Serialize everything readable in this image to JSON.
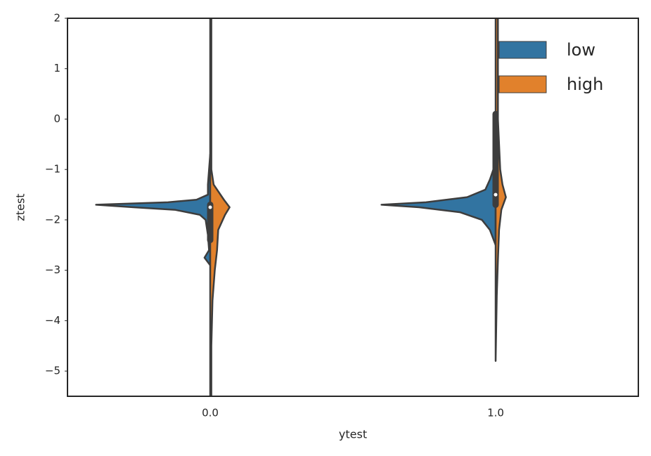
{
  "chart_data": {
    "type": "violin",
    "x_label": "ytest",
    "y_label": "ztest",
    "categories": [
      "0.0",
      "1.0"
    ],
    "ylim": [
      -5.5,
      2
    ],
    "yticks": [
      {
        "value": 2,
        "label": "2"
      },
      {
        "value": 1,
        "label": "1"
      },
      {
        "value": 0,
        "label": "0"
      },
      {
        "value": -1,
        "label": "−1"
      },
      {
        "value": -2,
        "label": "−2"
      },
      {
        "value": -3,
        "label": "−3"
      },
      {
        "value": -4,
        "label": "−4"
      },
      {
        "value": -5,
        "label": "−5"
      }
    ],
    "legend": "upper right",
    "series": [
      {
        "name": "low",
        "color": "#3274a1",
        "side": "left",
        "violins": [
          {
            "z": [
              -0.7,
              -1.0,
              -1.3,
              -1.5,
              -1.6,
              -1.65,
              -1.7,
              -1.75,
              -1.8,
              -1.9,
              -2.0,
              -2.3,
              -2.6,
              -2.75,
              -2.9
            ],
            "density": [
              0,
              0.01,
              0.02,
              0.02,
              0.12,
              0.37,
              1,
              0.67,
              0.31,
              0.09,
              0.04,
              0.02,
              0.01,
              0.05,
              0
            ]
          },
          {
            "z": [
              0.1,
              0,
              -0.5,
              -1,
              -1.2,
              -1.4,
              -1.55,
              -1.65,
              -1.7,
              -1.75,
              -1.85,
              -2,
              -2.2,
              -2.5
            ],
            "density": [
              0,
              0.02,
              0.02,
              0.02,
              0.05,
              0.09,
              0.25,
              0.61,
              1,
              0.67,
              0.31,
              0.12,
              0.05,
              0
            ]
          }
        ]
      },
      {
        "name": "high",
        "color": "#e1812c",
        "side": "right",
        "violins": [
          {
            "z": [
              2,
              1,
              0,
              -1,
              -1.3,
              -1.6,
              -1.75,
              -1.9,
              -2.2,
              -2.6,
              -3,
              -3.6,
              -4.5,
              -5.5
            ],
            "density": [
              0.01,
              0.01,
              0.01,
              0.01,
              0.03,
              0.12,
              0.17,
              0.13,
              0.07,
              0.06,
              0.04,
              0.02,
              0.01,
              0.01
            ]
          },
          {
            "z": [
              2,
              1,
              0,
              -0.5,
              -1,
              -1.3,
              -1.55,
              -1.8,
              -2.2,
              -2.8,
              -3.5,
              -4.8
            ],
            "density": [
              0.02,
              0.02,
              0.02,
              0.03,
              0.04,
              0.06,
              0.09,
              0.05,
              0.03,
              0.02,
              0.01,
              0
            ]
          }
        ]
      }
    ],
    "boxes": [
      {
        "q1": -2.4,
        "median": -1.75,
        "q3": -1.7
      },
      {
        "q1": -1.7,
        "median": -1.5,
        "q3": 0.1
      }
    ]
  }
}
